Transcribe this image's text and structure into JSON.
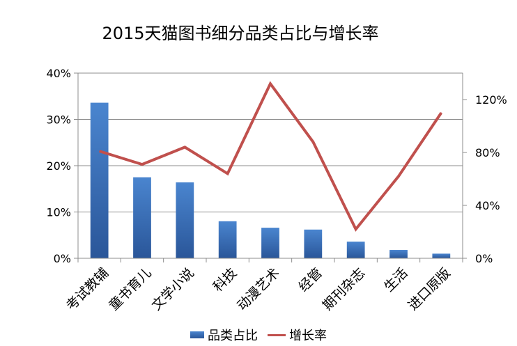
{
  "chart_data": {
    "type": "bar",
    "title": "2015天猫图书细分品类占比与增长率",
    "categories": [
      "考试教辅",
      "童书育儿",
      "文学小说",
      "科技",
      "动漫艺术",
      "经管",
      "期刊杂志",
      "生活",
      "进口原版"
    ],
    "series": [
      {
        "name": "品类占比",
        "type": "bar",
        "axis": "left",
        "values": [
          33.6,
          17.5,
          16.4,
          8.0,
          6.6,
          6.2,
          3.6,
          1.8,
          1.0
        ],
        "color": "#3a70bf"
      },
      {
        "name": "增长率",
        "type": "line",
        "axis": "right",
        "values": [
          81,
          71,
          84,
          64,
          132,
          88,
          22,
          62,
          110
        ],
        "color": "#c0504d"
      }
    ],
    "y_left": {
      "min": 0,
      "max": 40,
      "ticks": [
        "0%",
        "10%",
        "20%",
        "30%",
        "40%"
      ]
    },
    "y_right": {
      "min": 0,
      "max": 140,
      "ticks": [
        "0%",
        "40%",
        "80%",
        "120%"
      ]
    },
    "legend_position": "bottom",
    "grid": true
  }
}
